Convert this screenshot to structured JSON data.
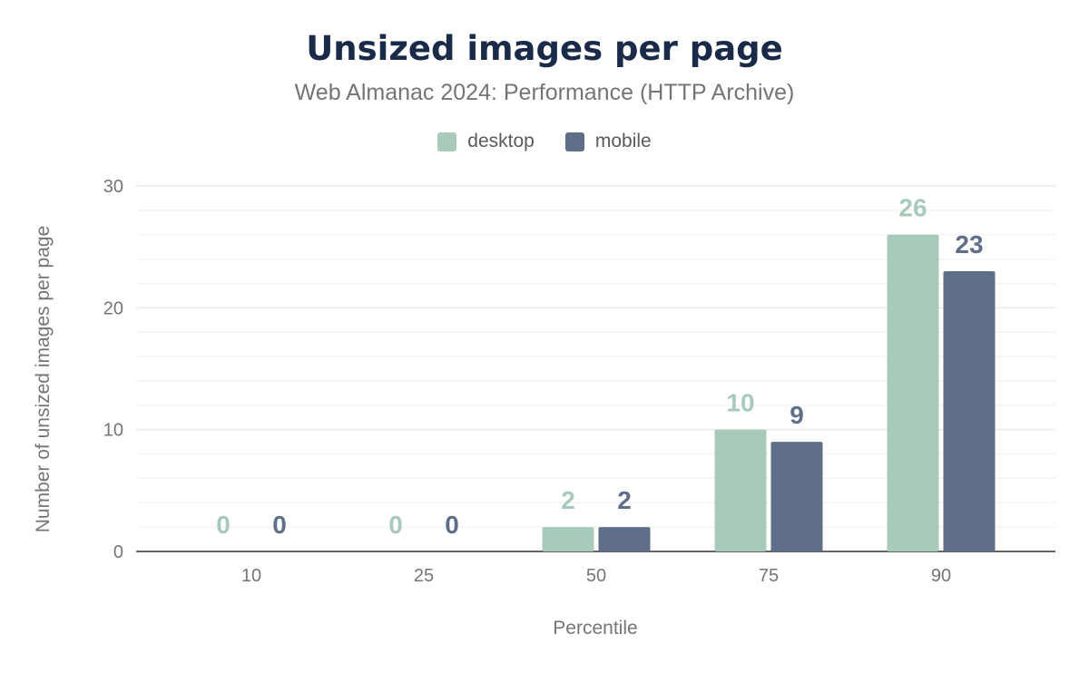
{
  "chart_data": {
    "type": "bar",
    "title": "Unsized images per page",
    "subtitle": "Web Almanac 2024: Performance (HTTP Archive)",
    "xlabel": "Percentile",
    "ylabel": "Number of unsized images per page",
    "categories": [
      "10",
      "25",
      "50",
      "75",
      "90"
    ],
    "series": [
      {
        "name": "desktop",
        "color": "#a8cabb",
        "values": [
          0,
          0,
          2,
          10,
          26
        ]
      },
      {
        "name": "mobile",
        "color": "#5f6f8a",
        "values": [
          0,
          0,
          2,
          9,
          23
        ]
      }
    ],
    "ylim": [
      0,
      30
    ],
    "yticks": [
      "0",
      "10",
      "20",
      "30"
    ],
    "grid": true,
    "legend": "top-center"
  }
}
